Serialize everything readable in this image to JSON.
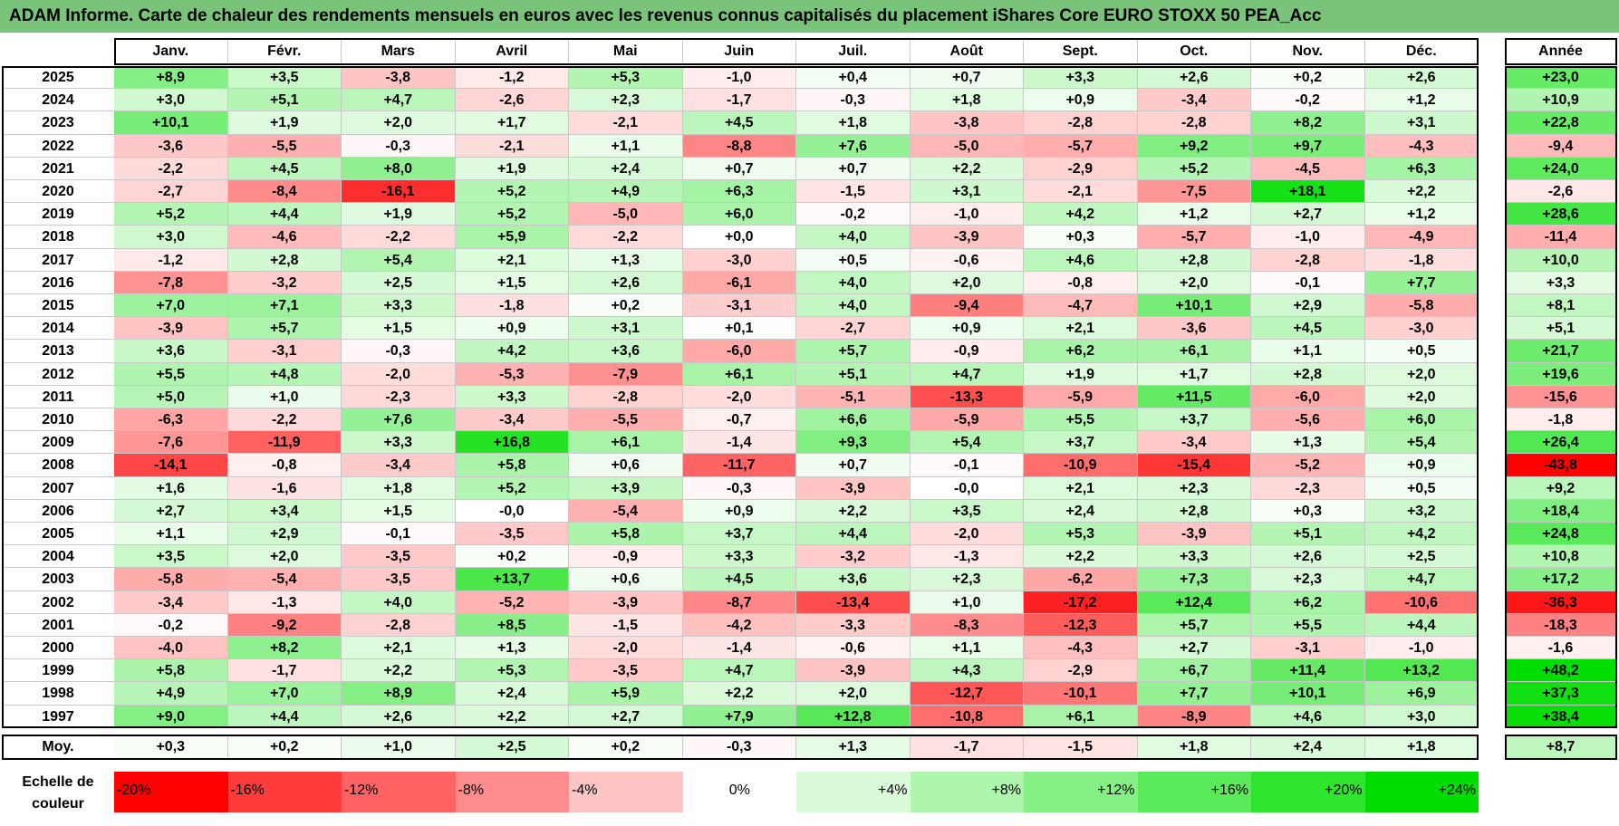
{
  "title": "ADAM Informe. Carte de chaleur des rendements mensuels en euros avec les revenus connus capitalisés du placement iShares Core EURO STOXX 50 PEA_Acc",
  "chart_data": {
    "type": "heatmap",
    "title": "ADAM Informe. Carte de chaleur des rendements mensuels en euros avec les revenus connus capitalisés du placement iShares Core EURO STOXX 50 PEA_Acc",
    "columns": [
      "Janv.",
      "Févr.",
      "Mars",
      "Avril",
      "Mai",
      "Juin",
      "Juil.",
      "Août",
      "Sept.",
      "Oct.",
      "Nov.",
      "Déc."
    ],
    "year_column_label": "Année",
    "rows": [
      {
        "year": "2025",
        "months": [
          "+8,9",
          "+3,5",
          "-3,8",
          "-1,2",
          "+5,3",
          "-1,0",
          "+0,4",
          "+0,7",
          "+3,3",
          "+2,6",
          "+0,2",
          "+2,6"
        ],
        "annual": "+23,0"
      },
      {
        "year": "2024",
        "months": [
          "+3,0",
          "+5,1",
          "+4,7",
          "-2,6",
          "+2,3",
          "-1,7",
          "-0,3",
          "+1,8",
          "+0,9",
          "-3,4",
          "-0,2",
          "+1,2"
        ],
        "annual": "+10,9"
      },
      {
        "year": "2023",
        "months": [
          "+10,1",
          "+1,9",
          "+2,0",
          "+1,7",
          "-2,1",
          "+4,5",
          "+1,8",
          "-3,8",
          "-2,8",
          "-2,8",
          "+8,2",
          "+3,1"
        ],
        "annual": "+22,8"
      },
      {
        "year": "2022",
        "months": [
          "-3,6",
          "-5,5",
          "-0,3",
          "-2,1",
          "+1,1",
          "-8,8",
          "+7,6",
          "-5,0",
          "-5,7",
          "+9,2",
          "+9,7",
          "-4,3"
        ],
        "annual": "-9,4"
      },
      {
        "year": "2021",
        "months": [
          "-2,2",
          "+4,5",
          "+8,0",
          "+1,9",
          "+2,4",
          "+0,7",
          "+0,7",
          "+2,2",
          "-2,9",
          "+5,2",
          "-4,5",
          "+6,3"
        ],
        "annual": "+24,0"
      },
      {
        "year": "2020",
        "months": [
          "-2,7",
          "-8,4",
          "-16,1",
          "+5,2",
          "+4,9",
          "+6,3",
          "-1,5",
          "+3,1",
          "-2,1",
          "-7,5",
          "+18,1",
          "+2,2"
        ],
        "annual": "-2,6"
      },
      {
        "year": "2019",
        "months": [
          "+5,2",
          "+4,4",
          "+1,9",
          "+5,2",
          "-5,0",
          "+6,0",
          "-0,2",
          "-1,0",
          "+4,2",
          "+1,2",
          "+2,7",
          "+1,2"
        ],
        "annual": "+28,6"
      },
      {
        "year": "2018",
        "months": [
          "+3,0",
          "-4,6",
          "-2,2",
          "+5,9",
          "-2,2",
          "+0,0",
          "+4,0",
          "-3,9",
          "+0,3",
          "-5,7",
          "-1,0",
          "-4,9"
        ],
        "annual": "-11,4"
      },
      {
        "year": "2017",
        "months": [
          "-1,2",
          "+2,8",
          "+5,4",
          "+2,1",
          "+1,3",
          "-3,0",
          "+0,5",
          "-0,6",
          "+4,6",
          "+2,8",
          "-2,8",
          "-1,8"
        ],
        "annual": "+10,0"
      },
      {
        "year": "2016",
        "months": [
          "-7,8",
          "-3,2",
          "+2,5",
          "+1,5",
          "+2,6",
          "-6,1",
          "+4,0",
          "+2,0",
          "-0,8",
          "+2,0",
          "-0,1",
          "+7,7"
        ],
        "annual": "+3,3"
      },
      {
        "year": "2015",
        "months": [
          "+7,0",
          "+7,1",
          "+3,3",
          "-1,8",
          "+0,2",
          "-3,1",
          "+4,0",
          "-9,4",
          "-4,7",
          "+10,1",
          "+2,9",
          "-5,8"
        ],
        "annual": "+8,1"
      },
      {
        "year": "2014",
        "months": [
          "-3,9",
          "+5,7",
          "+1,5",
          "+0,9",
          "+3,1",
          "+0,1",
          "-2,7",
          "+0,9",
          "+2,1",
          "-3,6",
          "+4,5",
          "-3,0"
        ],
        "annual": "+5,1"
      },
      {
        "year": "2013",
        "months": [
          "+3,6",
          "-3,1",
          "-0,3",
          "+4,2",
          "+3,6",
          "-6,0",
          "+5,7",
          "-0,9",
          "+6,2",
          "+6,1",
          "+1,1",
          "+0,5"
        ],
        "annual": "+21,7"
      },
      {
        "year": "2012",
        "months": [
          "+5,5",
          "+4,8",
          "-2,0",
          "-5,3",
          "-7,9",
          "+6,1",
          "+5,1",
          "+4,7",
          "+1,9",
          "+1,7",
          "+2,8",
          "+2,0"
        ],
        "annual": "+19,6"
      },
      {
        "year": "2011",
        "months": [
          "+5,0",
          "+1,0",
          "-2,3",
          "+3,3",
          "-2,8",
          "-2,0",
          "-5,1",
          "-13,3",
          "-5,9",
          "+11,5",
          "-6,0",
          "+2,0"
        ],
        "annual": "-15,6"
      },
      {
        "year": "2010",
        "months": [
          "-6,3",
          "-2,2",
          "+7,6",
          "-3,4",
          "-5,5",
          "-0,7",
          "+6,6",
          "-5,9",
          "+5,5",
          "+3,7",
          "-5,6",
          "+6,0"
        ],
        "annual": "-1,8"
      },
      {
        "year": "2009",
        "months": [
          "-7,6",
          "-11,9",
          "+3,3",
          "+16,8",
          "+6,1",
          "-1,4",
          "+9,3",
          "+5,4",
          "+3,7",
          "-3,4",
          "+1,3",
          "+5,4"
        ],
        "annual": "+26,4"
      },
      {
        "year": "2008",
        "months": [
          "-14,1",
          "-0,8",
          "-3,4",
          "+5,8",
          "+0,6",
          "-11,7",
          "+0,7",
          "-0,1",
          "-10,9",
          "-15,4",
          "-5,2",
          "+0,9"
        ],
        "annual": "-43,8"
      },
      {
        "year": "2007",
        "months": [
          "+1,6",
          "-1,6",
          "+1,8",
          "+5,2",
          "+3,9",
          "-0,3",
          "-3,9",
          "-0,0",
          "+2,1",
          "+2,3",
          "-2,3",
          "+0,5"
        ],
        "annual": "+9,2"
      },
      {
        "year": "2006",
        "months": [
          "+2,7",
          "+3,4",
          "+1,5",
          "-0,0",
          "-5,4",
          "+0,9",
          "+2,2",
          "+3,5",
          "+2,4",
          "+2,8",
          "+0,3",
          "+3,2"
        ],
        "annual": "+18,4"
      },
      {
        "year": "2005",
        "months": [
          "+1,1",
          "+2,9",
          "-0,1",
          "-3,5",
          "+5,8",
          "+3,7",
          "+4,4",
          "-2,0",
          "+5,3",
          "-3,9",
          "+5,1",
          "+4,2"
        ],
        "annual": "+24,8"
      },
      {
        "year": "2004",
        "months": [
          "+3,5",
          "+2,0",
          "-3,5",
          "+0,2",
          "-0,9",
          "+3,3",
          "-3,2",
          "-1,3",
          "+2,2",
          "+3,3",
          "+2,6",
          "+2,5"
        ],
        "annual": "+10,8"
      },
      {
        "year": "2003",
        "months": [
          "-5,8",
          "-5,4",
          "-3,5",
          "+13,7",
          "+0,6",
          "+4,5",
          "+3,6",
          "+2,3",
          "-6,2",
          "+7,3",
          "+2,3",
          "+4,7"
        ],
        "annual": "+17,2"
      },
      {
        "year": "2002",
        "months": [
          "-3,4",
          "-1,3",
          "+4,0",
          "-5,2",
          "-3,9",
          "-8,7",
          "-13,4",
          "+1,0",
          "-17,2",
          "+12,4",
          "+6,2",
          "-10,6"
        ],
        "annual": "-36,3"
      },
      {
        "year": "2001",
        "months": [
          "-0,2",
          "-9,2",
          "-2,8",
          "+8,5",
          "-1,5",
          "-4,2",
          "-3,3",
          "-8,3",
          "-12,3",
          "+5,7",
          "+5,5",
          "+4,4"
        ],
        "annual": "-18,3"
      },
      {
        "year": "2000",
        "months": [
          "-4,0",
          "+8,2",
          "+2,1",
          "+1,3",
          "-2,0",
          "-1,4",
          "-0,6",
          "+1,1",
          "-4,3",
          "+2,7",
          "-3,1",
          "-1,0"
        ],
        "annual": "-1,6"
      },
      {
        "year": "1999",
        "months": [
          "+5,8",
          "-1,7",
          "+2,2",
          "+5,3",
          "-3,5",
          "+4,7",
          "-3,9",
          "+4,3",
          "-2,9",
          "+6,7",
          "+11,4",
          "+13,2"
        ],
        "annual": "+48,2"
      },
      {
        "year": "1998",
        "months": [
          "+4,9",
          "+7,0",
          "+8,9",
          "+2,4",
          "+5,9",
          "+2,2",
          "+2,0",
          "-12,7",
          "-10,1",
          "+7,7",
          "+10,1",
          "+6,9"
        ],
        "annual": "+37,3"
      },
      {
        "year": "1997",
        "months": [
          "+9,0",
          "+4,4",
          "+2,6",
          "+2,2",
          "+2,7",
          "+7,9",
          "+12,8",
          "-10,8",
          "+6,1",
          "-8,9",
          "+4,6",
          "+3,0"
        ],
        "annual": "+38,4"
      }
    ],
    "average": {
      "label": "Moy.",
      "months": [
        "+0,3",
        "+0,2",
        "+1,0",
        "+2,5",
        "+0,2",
        "-0,3",
        "+1,3",
        "-1,7",
        "-1,5",
        "+1,8",
        "+2,4",
        "+1,8"
      ],
      "annual": "+8,7"
    },
    "scale_label": "Echelle de couleur",
    "scale": [
      {
        "label": "-20%",
        "value": -20,
        "color": "#ff0000"
      },
      {
        "label": "-16%",
        "value": -16,
        "color": "#ff3b3b"
      },
      {
        "label": "-12%",
        "value": -12,
        "color": "#ff6262"
      },
      {
        "label": "-8%",
        "value": -8,
        "color": "#ff8c8c"
      },
      {
        "label": "-4%",
        "value": -4,
        "color": "#ffc4c4"
      },
      {
        "label": "0%",
        "value": 0,
        "color": "#ffffff"
      },
      {
        "label": "+4%",
        "value": 4,
        "color": "#d9fbd9"
      },
      {
        "label": "+8%",
        "value": 8,
        "color": "#aef5ae"
      },
      {
        "label": "+12%",
        "value": 12,
        "color": "#86f086"
      },
      {
        "label": "+16%",
        "value": 16,
        "color": "#5aea5a"
      },
      {
        "label": "+20%",
        "value": 20,
        "color": "#2ee42e"
      },
      {
        "label": "+24%",
        "value": 24,
        "color": "#00dd00"
      }
    ],
    "annual_scale_max": 40
  }
}
